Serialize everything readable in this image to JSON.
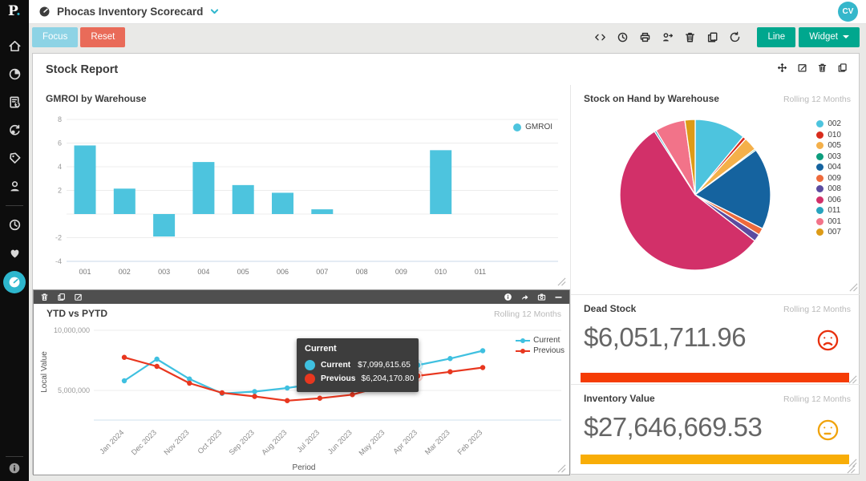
{
  "colors": {
    "accent_teal": "#2db6cd",
    "bar_teal": "#4dc4de",
    "focus_bg": "#8dd3e5",
    "reset_bg": "#e96b59",
    "phocas_green": "#00a78e"
  },
  "sidebar": {
    "logo_text": "P",
    "logo_dot": ".",
    "items": [
      "home",
      "analytics",
      "financial-statements",
      "rebates",
      "pricing",
      "customers"
    ],
    "items_secondary": [
      "recent",
      "favorites"
    ],
    "active_item": "dashboards",
    "footer_icon": "info"
  },
  "header": {
    "title": "Phocas Inventory Scorecard",
    "avatar": "CV"
  },
  "toolbar": {
    "focus_label": "Focus",
    "reset_label": "Reset",
    "icons": [
      "code",
      "history",
      "print",
      "user-share",
      "trash",
      "copy",
      "refresh"
    ],
    "line_label": "Line",
    "widget_label": "Widget"
  },
  "report": {
    "title": "Stock Report",
    "icons": [
      "move",
      "edit",
      "trash",
      "copy"
    ]
  },
  "widget_toolbar": {
    "left_icons": [
      "trash",
      "copy",
      "edit"
    ],
    "right_icons": [
      "info",
      "share",
      "camera",
      "minimize"
    ]
  },
  "chart_data": [
    {
      "type": "bar",
      "title": "GMROI by Warehouse",
      "legend": [
        "GMROI"
      ],
      "categories": [
        "001",
        "002",
        "003",
        "004",
        "005",
        "006",
        "007",
        "008",
        "009",
        "010",
        "011"
      ],
      "values": [
        5.8,
        2.15,
        -1.9,
        4.4,
        2.45,
        1.8,
        0.4,
        0,
        0,
        5.4,
        0
      ],
      "ylim": [
        -4,
        8
      ],
      "yticks": [
        8,
        6,
        4,
        2,
        0,
        -2,
        -4
      ],
      "grid": true
    },
    {
      "type": "pie",
      "title": "Stock on Hand by Warehouse",
      "period": "Rolling 12 Months",
      "labels": [
        "002",
        "010",
        "005",
        "003",
        "004",
        "009",
        "008",
        "006",
        "011",
        "001",
        "007"
      ],
      "values": [
        11,
        0.7,
        2.9,
        0.3,
        17.5,
        1.5,
        1.6,
        55.4,
        0.4,
        6.5,
        2.2
      ],
      "colors": [
        "#4dc4de",
        "#d82c1d",
        "#f4b04a",
        "#0d9d7d",
        "#15639f",
        "#ee6a3c",
        "#5b4ba0",
        "#d23069",
        "#27a3be",
        "#f27389",
        "#dd9b17"
      ],
      "legend_position": "right"
    },
    {
      "type": "line",
      "title": "YTD vs PYTD",
      "period": "Rolling 12 Months",
      "xlabel": "Period",
      "ylabel": "Local Value",
      "x": [
        "Jan 2024",
        "Dec 2023",
        "Nov 2023",
        "Oct 2023",
        "Sep 2023",
        "Aug 2023",
        "Jul 2023",
        "Jun 2023",
        "May 2023",
        "Apr 2023",
        "Mar 2023",
        "Feb 2023"
      ],
      "yticks": [
        {
          "label": "10,000,000",
          "v": 10
        },
        {
          "label": "5,000,000",
          "v": 5
        }
      ],
      "series": [
        {
          "name": "Current",
          "color": "#3fc0e0",
          "values_millions": [
            5.8,
            7.6,
            5.95,
            4.75,
            4.9,
            5.2,
            5.6,
            6.3,
            6.7,
            7.0996,
            7.65,
            8.3
          ]
        },
        {
          "name": "Previous",
          "color": "#e8371f",
          "values_millions": [
            7.75,
            7.0,
            5.6,
            4.8,
            4.5,
            4.15,
            4.35,
            4.65,
            5.4,
            6.2042,
            6.55,
            6.9
          ]
        }
      ],
      "highlight_index": 9
    }
  ],
  "tooltip": {
    "title": "Current",
    "rows": [
      {
        "label": "Current",
        "value": "$7,099,615.65"
      },
      {
        "label": "Previous",
        "value": "$6,204,170.80"
      }
    ]
  },
  "kpis": [
    {
      "title": "Dead Stock",
      "period": "Rolling 12 Months",
      "value": "$6,051,711.96",
      "mood": "sad",
      "face_color": "#e8300d",
      "bar_color": "#f53c05"
    },
    {
      "title": "Inventory Value",
      "period": "Rolling 12 Months",
      "value": "$27,646,669.53",
      "mood": "neutral",
      "face_color": "#f0a30c",
      "bar_color": "#f8ad07"
    }
  ]
}
